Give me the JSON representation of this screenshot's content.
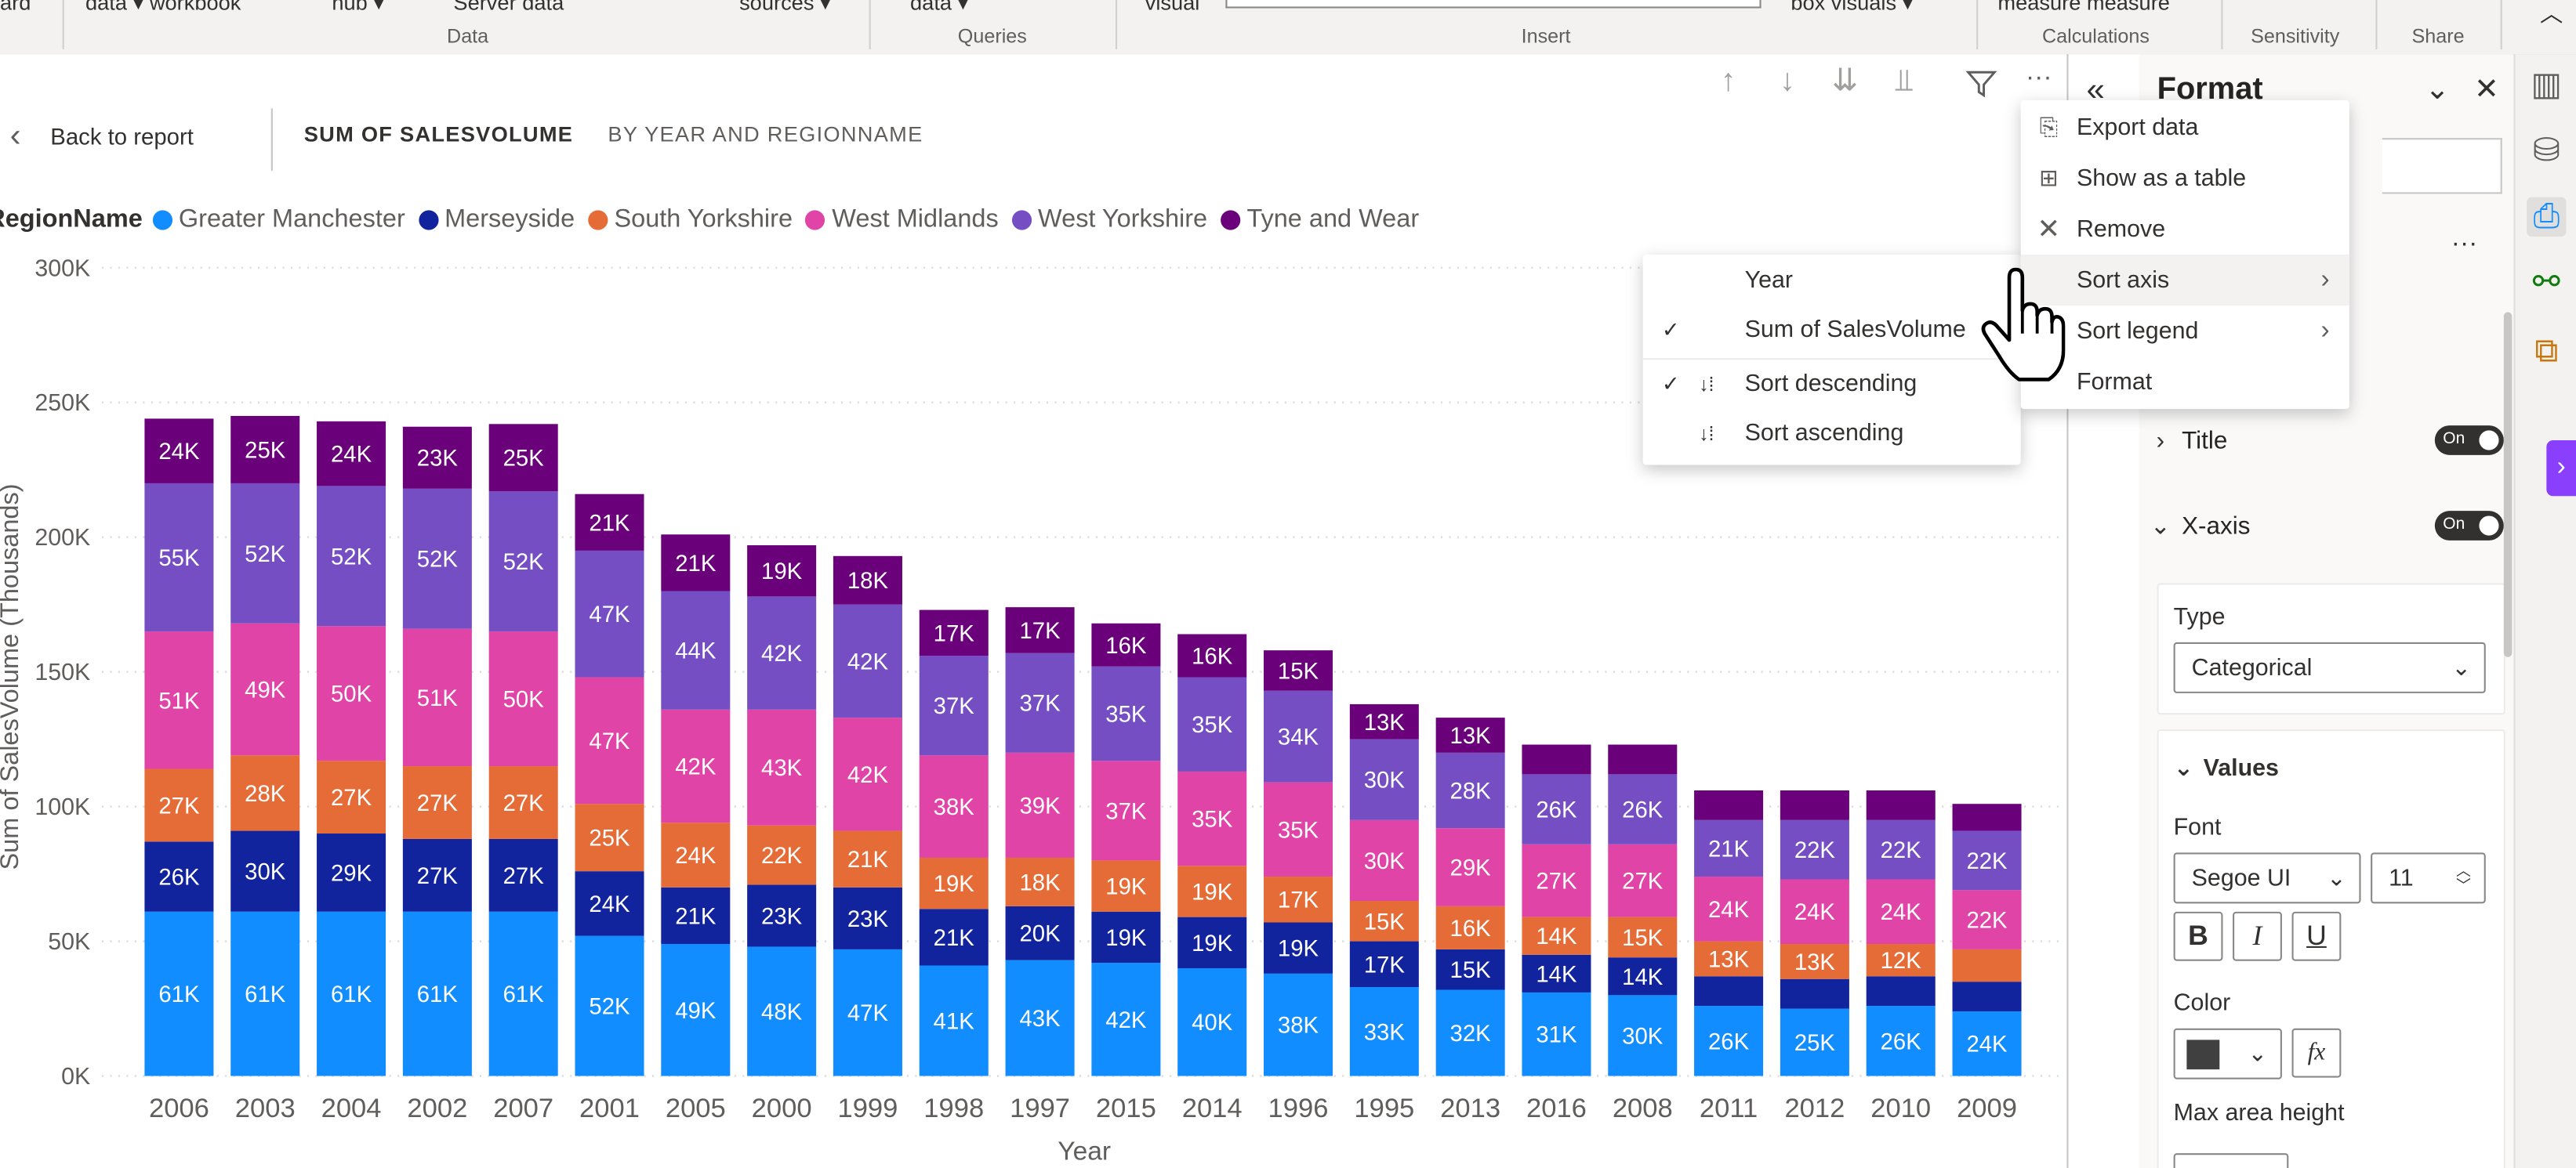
{
  "ribbon": {
    "top_items": [
      "ard",
      "data ▾ workbook",
      "hub ▾",
      "Server data",
      "sources ▾",
      "data ▾",
      "visual",
      "box visuals ▾",
      "measure measure"
    ],
    "groups": [
      "Data",
      "Queries",
      "Insert",
      "Calculations",
      "Sensitivity",
      "Share"
    ]
  },
  "visual_header": {
    "back_label": "Back to report",
    "title_measure": "SUM OF SALESVOLUME",
    "title_by": "BY YEAR AND REGIONNAME"
  },
  "legend": {
    "title": "RegionName",
    "items": [
      {
        "label": "Greater Manchester",
        "color": "#118dff"
      },
      {
        "label": "Merseyside",
        "color": "#12239e"
      },
      {
        "label": "South Yorkshire",
        "color": "#e66c37"
      },
      {
        "label": "West Midlands",
        "color": "#e044a7"
      },
      {
        "label": "West Yorkshire",
        "color": "#744ec2"
      },
      {
        "label": "Tyne and Wear",
        "color": "#6b007b"
      }
    ]
  },
  "chart_data": {
    "type": "bar",
    "stacked": true,
    "xlabel": "Year",
    "ylabel": "Sum of SalesVolume (Thousands)",
    "ylim": [
      0,
      300000
    ],
    "yticks": [
      "0K",
      "50K",
      "100K",
      "150K",
      "200K",
      "250K",
      "300K"
    ],
    "grid": "horizontal dotted",
    "categories": [
      "2006",
      "2003",
      "2004",
      "2002",
      "2007",
      "2001",
      "2005",
      "2000",
      "1999",
      "1998",
      "1997",
      "2015",
      "2014",
      "1996",
      "1995",
      "2013",
      "2016",
      "2008",
      "2011",
      "2012",
      "2010",
      "2009"
    ],
    "series": [
      {
        "name": "Greater Manchester",
        "color": "#118dff",
        "values": [
          61000,
          61000,
          61000,
          61000,
          61000,
          52000,
          49000,
          48000,
          47000,
          41000,
          43000,
          42000,
          40000,
          38000,
          33000,
          32000,
          31000,
          30000,
          26000,
          25000,
          26000,
          24000
        ],
        "labels": [
          "61K",
          "61K",
          "61K",
          "61K",
          "61K",
          "52K",
          "49K",
          "48K",
          "47K",
          "41K",
          "43K",
          "42K",
          "40K",
          "38K",
          "33K",
          "32K",
          "31K",
          "30K",
          "26K",
          "25K",
          "26K",
          "24K"
        ]
      },
      {
        "name": "Merseyside",
        "color": "#12239e",
        "values": [
          26000,
          30000,
          29000,
          27000,
          27000,
          24000,
          21000,
          23000,
          23000,
          21000,
          20000,
          19000,
          19000,
          19000,
          17000,
          15000,
          14000,
          14000,
          11000,
          11000,
          11000,
          11000
        ],
        "labels": [
          "26K",
          "30K",
          "29K",
          "27K",
          "27K",
          "24K",
          "21K",
          "23K",
          "23K",
          "21K",
          "20K",
          "19K",
          "19K",
          "19K",
          "17K",
          "15K",
          "14K",
          "14K",
          "",
          "",
          "",
          ""
        ]
      },
      {
        "name": "South Yorkshire",
        "color": "#e66c37",
        "values": [
          27000,
          28000,
          27000,
          27000,
          27000,
          25000,
          24000,
          22000,
          21000,
          19000,
          18000,
          19000,
          19000,
          17000,
          15000,
          16000,
          14000,
          15000,
          13000,
          13000,
          12000,
          12000
        ],
        "labels": [
          "27K",
          "28K",
          "27K",
          "27K",
          "27K",
          "25K",
          "24K",
          "22K",
          "21K",
          "19K",
          "18K",
          "19K",
          "19K",
          "17K",
          "15K",
          "16K",
          "14K",
          "15K",
          "13K",
          "13K",
          "12K",
          ""
        ]
      },
      {
        "name": "West Midlands",
        "color": "#e044a7",
        "values": [
          51000,
          49000,
          50000,
          51000,
          50000,
          47000,
          42000,
          43000,
          42000,
          38000,
          39000,
          37000,
          35000,
          35000,
          30000,
          29000,
          27000,
          27000,
          24000,
          24000,
          24000,
          22000
        ],
        "labels": [
          "51K",
          "49K",
          "50K",
          "51K",
          "50K",
          "47K",
          "42K",
          "43K",
          "42K",
          "38K",
          "39K",
          "37K",
          "35K",
          "35K",
          "30K",
          "29K",
          "27K",
          "27K",
          "24K",
          "24K",
          "24K",
          "22K"
        ]
      },
      {
        "name": "West Yorkshire",
        "color": "#744ec2",
        "values": [
          55000,
          52000,
          52000,
          52000,
          52000,
          47000,
          44000,
          42000,
          42000,
          37000,
          37000,
          35000,
          35000,
          34000,
          30000,
          28000,
          26000,
          26000,
          21000,
          22000,
          22000,
          22000
        ],
        "labels": [
          "55K",
          "52K",
          "52K",
          "52K",
          "52K",
          "47K",
          "44K",
          "42K",
          "42K",
          "37K",
          "37K",
          "35K",
          "35K",
          "34K",
          "30K",
          "28K",
          "26K",
          "26K",
          "21K",
          "22K",
          "22K",
          "22K"
        ]
      },
      {
        "name": "Tyne and Wear",
        "color": "#6b007b",
        "values": [
          24000,
          25000,
          24000,
          23000,
          25000,
          21000,
          21000,
          19000,
          18000,
          17000,
          17000,
          16000,
          16000,
          15000,
          13000,
          13000,
          11000,
          11000,
          11000,
          11000,
          11000,
          10000
        ],
        "labels": [
          "24K",
          "25K",
          "24K",
          "23K",
          "25K",
          "21K",
          "21K",
          "19K",
          "18K",
          "17K",
          "17K",
          "16K",
          "16K",
          "15K",
          "13K",
          "13K",
          "",
          "",
          "",
          "",
          "",
          ""
        ]
      }
    ]
  },
  "context_menu": {
    "items": [
      {
        "label": "Export data",
        "icon": "export-icon"
      },
      {
        "label": "Show as a table",
        "icon": "table-icon"
      },
      {
        "label": "Remove",
        "icon": "close-icon"
      },
      {
        "label": "Sort axis",
        "icon": "chevron-right-icon",
        "highlighted": true
      },
      {
        "label": "Sort legend",
        "icon": "chevron-right-icon"
      },
      {
        "label": "Format",
        "icon": ""
      }
    ]
  },
  "sort_submenu": {
    "fields": [
      {
        "label": "Year",
        "checked": false
      },
      {
        "label": "Sum of SalesVolume",
        "checked": true
      }
    ],
    "orders": [
      {
        "label": "Sort descending",
        "checked": true
      },
      {
        "label": "Sort ascending",
        "checked": false
      }
    ]
  },
  "format_pane": {
    "title": "Format",
    "title_section": {
      "label": "Title",
      "toggle": "On"
    },
    "xaxis_section": {
      "label": "X-axis",
      "toggle": "On"
    },
    "type_label": "Type",
    "type_value": "Categorical",
    "values_label": "Values",
    "font_label": "Font",
    "font_family": "Segoe UI",
    "font_size": "11",
    "bold": "B",
    "italic": "I",
    "underline": "U",
    "color_label": "Color",
    "fx": "fx",
    "max_area_label": "Max area height"
  }
}
